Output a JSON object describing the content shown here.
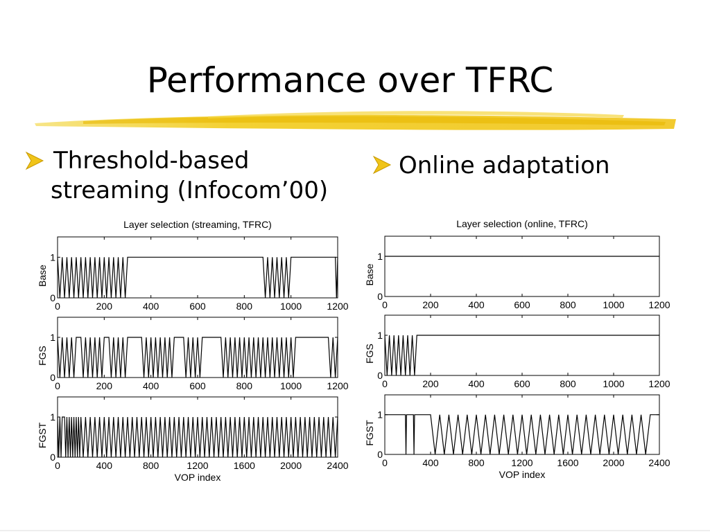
{
  "slide": {
    "title": "Performance over TFRC",
    "bullets": [
      {
        "lines": [
          "Threshold-based",
          "streaming (Infocom’00)"
        ]
      },
      {
        "lines": [
          "Online adaptation"
        ]
      }
    ]
  },
  "chart_data": [
    {
      "type": "line",
      "title": "Layer selection (streaming, TFRC)",
      "ylabel": "Base",
      "color": "#000000",
      "xlim": [
        0,
        1200
      ],
      "xticks": [
        0,
        200,
        400,
        600,
        800,
        1000,
        1200
      ],
      "ylim": [
        0,
        1.5
      ],
      "yticks": [
        0,
        1
      ],
      "x": [
        0,
        10,
        20,
        30,
        40,
        50,
        60,
        70,
        80,
        90,
        100,
        110,
        120,
        130,
        140,
        150,
        160,
        170,
        180,
        190,
        200,
        210,
        220,
        230,
        240,
        250,
        260,
        270,
        280,
        290,
        300,
        880,
        890,
        900,
        910,
        920,
        930,
        940,
        950,
        960,
        970,
        980,
        990,
        1000,
        1190,
        1195,
        1200
      ],
      "values": [
        1,
        0,
        1,
        0,
        1,
        0,
        1,
        0,
        1,
        0,
        1,
        0,
        1,
        0,
        1,
        0,
        1,
        0,
        1,
        0,
        1,
        0,
        1,
        0,
        1,
        0,
        1,
        0,
        1,
        0,
        1,
        1,
        0,
        1,
        0,
        1,
        0,
        1,
        0,
        1,
        0,
        1,
        0,
        1,
        1,
        0,
        1
      ]
    },
    {
      "type": "line",
      "ylabel": "FGS",
      "color": "#000000",
      "xlim": [
        0,
        1200
      ],
      "xticks": [
        0,
        200,
        400,
        600,
        800,
        1000,
        1200
      ],
      "ylim": [
        0,
        1.5
      ],
      "yticks": [
        0,
        1
      ],
      "x": [
        0,
        10,
        20,
        30,
        40,
        50,
        60,
        70,
        80,
        100,
        110,
        120,
        130,
        140,
        150,
        160,
        170,
        180,
        190,
        200,
        220,
        230,
        240,
        250,
        260,
        270,
        280,
        290,
        300,
        360,
        370,
        380,
        390,
        400,
        410,
        420,
        430,
        440,
        450,
        460,
        470,
        480,
        490,
        500,
        540,
        550,
        560,
        570,
        580,
        590,
        600,
        610,
        620,
        700,
        710,
        720,
        730,
        740,
        750,
        760,
        770,
        780,
        790,
        800,
        810,
        820,
        830,
        840,
        850,
        860,
        870,
        880,
        890,
        900,
        910,
        920,
        930,
        940,
        950,
        960,
        970,
        980,
        990,
        1000,
        1010,
        1020,
        1160,
        1170,
        1180,
        1190,
        1200
      ],
      "values": [
        1,
        0,
        1,
        0,
        1,
        0,
        1,
        0,
        1,
        1,
        0,
        1,
        0,
        1,
        0,
        1,
        0,
        1,
        0,
        1,
        1,
        0,
        1,
        0,
        1,
        0,
        1,
        0,
        1,
        1,
        0,
        1,
        0,
        1,
        0,
        1,
        0,
        1,
        0,
        1,
        0,
        1,
        0,
        1,
        1,
        0,
        1,
        0,
        1,
        0,
        1,
        0,
        1,
        1,
        0,
        1,
        0,
        1,
        0,
        1,
        0,
        1,
        0,
        1,
        0,
        1,
        0,
        1,
        0,
        1,
        0,
        1,
        0,
        1,
        0,
        1,
        0,
        1,
        0,
        1,
        0,
        1,
        0,
        1,
        0,
        1,
        1,
        0,
        1,
        0,
        1
      ]
    },
    {
      "type": "line",
      "ylabel": "FGST",
      "xlabel": "VOP index",
      "color": "#000000",
      "xlim": [
        0,
        2400
      ],
      "xticks": [
        0,
        400,
        800,
        1200,
        1600,
        2000,
        2400
      ],
      "ylim": [
        0,
        1.5
      ],
      "yticks": [
        0,
        1
      ],
      "x": [
        0,
        10,
        20,
        30,
        40,
        60,
        70,
        80,
        90,
        100,
        110,
        120,
        130,
        140,
        150,
        160,
        170,
        180,
        190,
        200,
        220,
        240,
        260,
        280,
        300,
        320,
        340,
        360,
        380,
        400,
        420,
        440,
        460,
        480,
        500,
        520,
        540,
        560,
        580,
        600,
        620,
        640,
        660,
        680,
        700,
        720,
        740,
        760,
        780,
        800,
        820,
        840,
        860,
        880,
        900,
        920,
        940,
        960,
        980,
        1000,
        1020,
        1040,
        1060,
        1080,
        1100,
        1120,
        1140,
        1160,
        1180,
        1200,
        1220,
        1240,
        1260,
        1280,
        1300,
        1320,
        1340,
        1360,
        1380,
        1400,
        1420,
        1440,
        1460,
        1480,
        1500,
        1520,
        1540,
        1560,
        1580,
        1600,
        1620,
        1640,
        1660,
        1680,
        1700,
        1720,
        1740,
        1760,
        1780,
        1800,
        1820,
        1840,
        1860,
        1880,
        1900,
        1920,
        1940,
        1960,
        1980,
        2000,
        2020,
        2040,
        2060,
        2080,
        2100,
        2120,
        2140,
        2160,
        2180,
        2200,
        2220,
        2240,
        2260,
        2280,
        2300,
        2320,
        2340,
        2360,
        2380,
        2400
      ],
      "values": [
        1,
        0,
        1,
        0,
        1,
        1,
        0,
        1,
        0,
        1,
        0,
        1,
        0,
        1,
        0,
        1,
        0,
        1,
        0,
        1,
        0,
        1,
        0,
        1,
        0,
        1,
        0,
        1,
        0,
        1,
        0,
        1,
        0,
        1,
        0,
        1,
        0,
        1,
        0,
        1,
        0,
        1,
        0,
        1,
        0,
        1,
        0,
        1,
        0,
        1,
        0,
        1,
        0,
        1,
        0,
        1,
        0,
        1,
        0,
        1,
        0,
        1,
        0,
        1,
        0,
        1,
        0,
        1,
        0,
        1,
        0,
        1,
        0,
        1,
        0,
        1,
        0,
        1,
        0,
        1,
        0,
        1,
        0,
        1,
        0,
        1,
        0,
        1,
        0,
        1,
        0,
        1,
        0,
        1,
        0,
        1,
        0,
        1,
        0,
        1,
        0,
        1,
        0,
        1,
        0,
        1,
        0,
        1,
        0,
        1,
        0,
        1,
        0,
        1,
        0,
        1,
        0,
        1,
        0,
        1,
        0,
        1,
        0,
        1,
        0,
        1,
        0,
        1,
        0,
        1
      ]
    },
    {
      "type": "line",
      "title": "Layer selection (online, TFRC)",
      "ylabel": "Base",
      "color": "#000000",
      "xlim": [
        0,
        1200
      ],
      "xticks": [
        0,
        200,
        400,
        600,
        800,
        1000,
        1200
      ],
      "ylim": [
        0,
        1.5
      ],
      "yticks": [
        0,
        1
      ],
      "x": [
        0,
        1200
      ],
      "values": [
        1,
        1
      ]
    },
    {
      "type": "line",
      "ylabel": "FGS",
      "color": "#000000",
      "xlim": [
        0,
        1200
      ],
      "xticks": [
        0,
        200,
        400,
        600,
        800,
        1000,
        1200
      ],
      "ylim": [
        0,
        1.5
      ],
      "yticks": [
        0,
        1
      ],
      "x": [
        0,
        10,
        20,
        30,
        40,
        50,
        60,
        70,
        80,
        90,
        100,
        110,
        120,
        130,
        140,
        1200
      ],
      "values": [
        1,
        0,
        1,
        0,
        1,
        0,
        1,
        0,
        1,
        0,
        1,
        0,
        1,
        0,
        1,
        1
      ]
    },
    {
      "type": "line",
      "ylabel": "FGST",
      "xlabel": "VOP index",
      "color": "#000000",
      "xlim": [
        0,
        2400
      ],
      "xticks": [
        0,
        400,
        800,
        1200,
        1600,
        2000,
        2400
      ],
      "ylim": [
        0,
        1.5
      ],
      "yticks": [
        0,
        1
      ],
      "x": [
        0,
        180,
        185,
        190,
        250,
        255,
        260,
        400,
        440,
        480,
        520,
        560,
        600,
        640,
        680,
        720,
        760,
        800,
        840,
        880,
        920,
        960,
        1000,
        1040,
        1080,
        1120,
        1160,
        1200,
        1240,
        1280,
        1320,
        1360,
        1400,
        1440,
        1480,
        1520,
        1560,
        1600,
        1640,
        1680,
        1720,
        1760,
        1800,
        1840,
        1880,
        1920,
        1960,
        2000,
        2040,
        2080,
        2120,
        2160,
        2200,
        2240,
        2280,
        2320,
        2400
      ],
      "values": [
        1,
        1,
        0,
        1,
        1,
        0,
        1,
        1,
        0,
        1,
        0,
        1,
        0,
        1,
        0,
        1,
        0,
        1,
        0,
        1,
        0,
        1,
        0,
        1,
        0,
        1,
        0,
        1,
        0,
        1,
        0,
        1,
        0,
        1,
        0,
        1,
        0,
        1,
        0,
        1,
        0,
        1,
        0,
        1,
        0,
        1,
        0,
        1,
        0,
        1,
        0,
        1,
        0,
        1,
        0,
        1,
        1
      ]
    }
  ]
}
